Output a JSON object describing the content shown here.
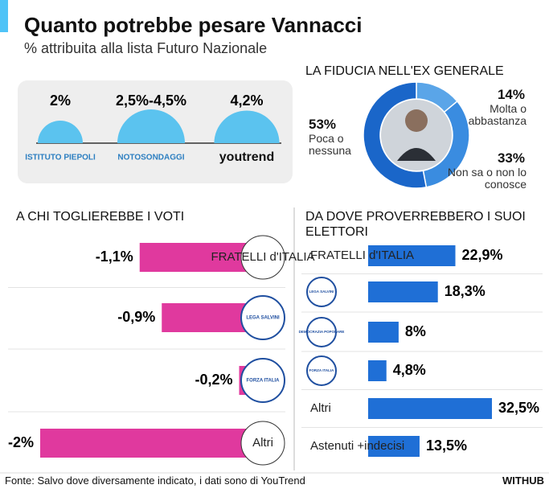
{
  "header": {
    "title": "Quanto potrebbe pesare Vannacci",
    "subtitle": "% attribuita alla lista Futuro Nazionale"
  },
  "chart_data": [
    {
      "type": "semicircle",
      "categories": [
        "ISTITUTO PIEPOLI",
        "NOTOSONDAGGI",
        "youtrend"
      ],
      "values": [
        [
          2
        ],
        [
          2.5,
          4.5
        ],
        [
          4.2
        ]
      ],
      "value_labels": [
        "2%",
        "2,5%-4,5%",
        "4,2%"
      ],
      "color": "#5bc3ef"
    },
    {
      "type": "donut",
      "title": "LA FIDUCIA NELL'EX GENERALE",
      "categories": [
        "Molta o abbastanza",
        "Non sa o non lo conosce",
        "Poca o nessuna"
      ],
      "values": [
        14,
        33,
        53
      ],
      "value_labels": [
        "14%",
        "33%",
        "53%"
      ],
      "colors": [
        "#5aa5e8",
        "#3a8ce0",
        "#1a66c9"
      ]
    },
    {
      "type": "hbar",
      "title": "A CHI TOGLIEREBBE I VOTI",
      "categories": [
        "FRATELLI d'ITALIA",
        "LEGA SALVINI",
        "FORZA ITALIA",
        "Altri"
      ],
      "values": [
        -1.1,
        -0.9,
        -0.2,
        -2
      ],
      "value_labels": [
        "-1,1%",
        "-0,9%",
        "-0,2%",
        "-2%"
      ],
      "color": "#e0399e",
      "xlim": [
        -2,
        0
      ]
    },
    {
      "type": "hbar",
      "title": "DA DOVE PROVERREBBERO I SUOI ELETTORI",
      "categories": [
        "FRATELLI d'ITALIA",
        "LEGA SALVINI",
        "DEMOCRAZIA POPOLARE",
        "FORZA ITALIA",
        "Altri",
        "Astenuti +indecisi"
      ],
      "values": [
        22.9,
        18.3,
        8,
        4.8,
        32.5,
        13.5
      ],
      "value_labels": [
        "22,9%",
        "18,3%",
        "8%",
        "4,8%",
        "32,5%",
        "13,5%"
      ],
      "color": "#1f6fd6",
      "xlim": [
        0,
        32.5
      ]
    }
  ],
  "footer": {
    "source": "Fonte: Salvo dove diversamente indicato, i dati sono di YouTrend",
    "brand": "WITHUB"
  }
}
